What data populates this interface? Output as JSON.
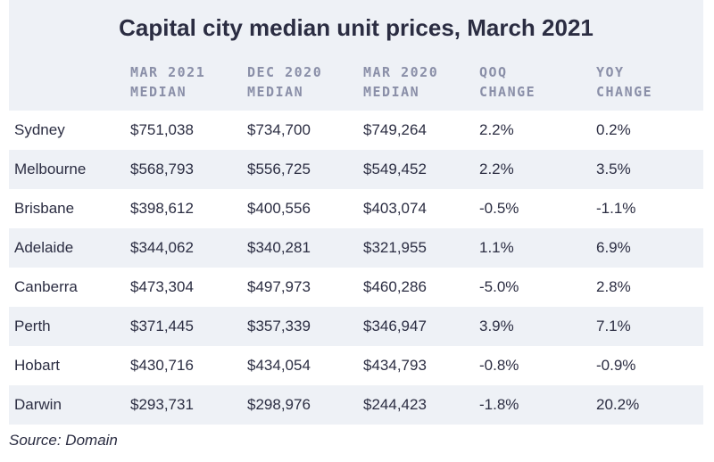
{
  "title": "Capital city median unit prices, March 2021",
  "headers": [
    "",
    "MAR 2021\nMEDIAN",
    "DEC 2020\nMEDIAN",
    "MAR 2020\nMEDIAN",
    "QOQ\nCHANGE",
    "YOY\nCHANGE"
  ],
  "rows": [
    [
      "Sydney",
      "$751,038",
      "$734,700",
      "$749,264",
      "2.2%",
      "0.2%"
    ],
    [
      "Melbourne",
      "$568,793",
      "$556,725",
      "$549,452",
      "2.2%",
      "3.5%"
    ],
    [
      "Brisbane",
      "$398,612",
      "$400,556",
      "$403,074",
      "-0.5%",
      "-1.1%"
    ],
    [
      "Adelaide",
      "$344,062",
      "$340,281",
      "$321,955",
      "1.1%",
      "6.9%"
    ],
    [
      "Canberra",
      "$473,304",
      "$497,973",
      "$460,286",
      "-5.0%",
      "2.8%"
    ],
    [
      "Perth",
      "$371,445",
      "$357,339",
      "$346,947",
      "3.9%",
      "7.1%"
    ],
    [
      "Hobart",
      "$430,716",
      "$434,054",
      "$434,793",
      "-0.8%",
      "-0.9%"
    ],
    [
      "Darwin",
      "$293,731",
      "$298,976",
      "$244,423",
      "-1.8%",
      "20.2%"
    ]
  ],
  "source": "Source: Domain",
  "colors": {
    "band": "#eef1f6",
    "header_text": "#8a8fa8",
    "body_text": "#2b2d42"
  }
}
